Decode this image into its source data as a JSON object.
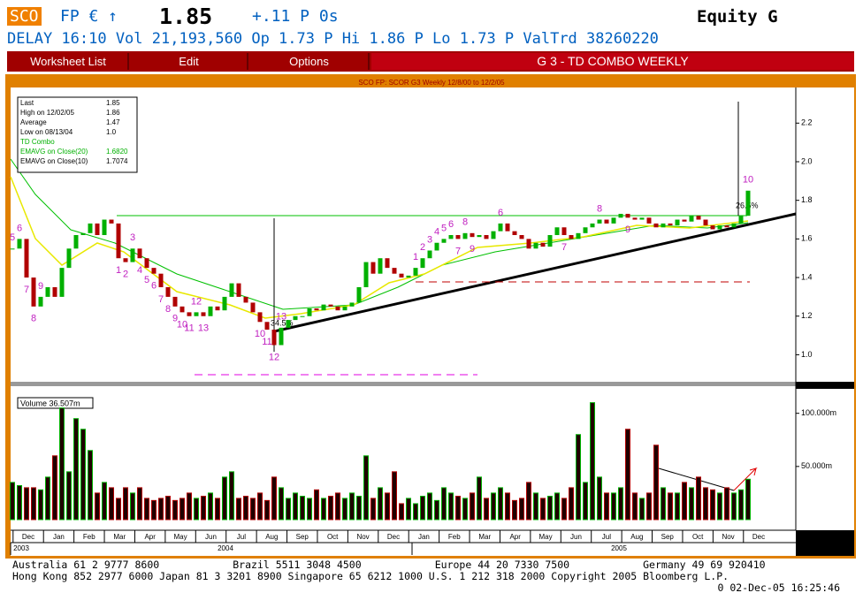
{
  "header": {
    "ticker": "SCO",
    "exchange": "FP € ↑",
    "price": "1.85",
    "change": "+.11 P 0s",
    "screen": "Equity G",
    "status": "DELAY 16:10 Vol 21,193,560 Op 1.73 P Hi 1.86 P Lo 1.73 P ValTrd 38260220"
  },
  "menu": [
    "Worksheet List",
    "Edit",
    "Options"
  ],
  "screen_title": "G 3 - TD COMBO WEEKLY",
  "chart_data": {
    "type": "candlestick",
    "title": "SCO FP: SCOR G3 Weekly 12/8/00 to 12/2/05",
    "legend": [
      {
        "label": "Last",
        "value": "1.85",
        "color": "#000000"
      },
      {
        "label": "High on  12/02/05",
        "value": "1.86",
        "color": "#000000"
      },
      {
        "label": "Average",
        "value": "1.47",
        "color": "#000000"
      },
      {
        "label": "Low on  08/13/04",
        "value": "1.0",
        "color": "#000000"
      },
      {
        "label": "TD Combo",
        "value": "",
        "color": "#00b000"
      },
      {
        "label": "EMAVG on Close(20)",
        "value": "1.6820",
        "color": "#00b000"
      },
      {
        "label": "EMAVG on Close(10)",
        "value": "1.7074",
        "color": "#000000"
      }
    ],
    "close": [
      1.55,
      1.6,
      1.4,
      1.25,
      1.3,
      1.35,
      1.3,
      1.45,
      1.55,
      1.62,
      1.63,
      1.68,
      1.62,
      1.7,
      1.68,
      1.5,
      1.48,
      1.55,
      1.5,
      1.45,
      1.42,
      1.35,
      1.3,
      1.25,
      1.22,
      1.2,
      1.22,
      1.2,
      1.25,
      1.23,
      1.3,
      1.37,
      1.3,
      1.27,
      1.22,
      1.17,
      1.13,
      1.05,
      1.14,
      1.18,
      1.2,
      1.2,
      1.24,
      1.23,
      1.26,
      1.25,
      1.23,
      1.25,
      1.27,
      1.35,
      1.48,
      1.42,
      1.5,
      1.45,
      1.42,
      1.4,
      1.41,
      1.45,
      1.5,
      1.54,
      1.58,
      1.6,
      1.62,
      1.6,
      1.63,
      1.61,
      1.62,
      1.6,
      1.64,
      1.68,
      1.64,
      1.62,
      1.6,
      1.55,
      1.58,
      1.56,
      1.62,
      1.66,
      1.62,
      1.6,
      1.63,
      1.66,
      1.68,
      1.7,
      1.68,
      1.71,
      1.73,
      1.71,
      1.7,
      1.71,
      1.68,
      1.66,
      1.68,
      1.67,
      1.7,
      1.69,
      1.72,
      1.7,
      1.67,
      1.65,
      1.67,
      1.66,
      1.68,
      1.72,
      1.85
    ],
    "td_labels": [
      "5",
      "6",
      "7",
      "8",
      "9",
      null,
      null,
      null,
      null,
      null,
      null,
      null,
      null,
      null,
      null,
      "1",
      "2",
      "3",
      "4",
      "5",
      "6",
      "7",
      "8",
      "9",
      "10",
      "11",
      "12",
      "13",
      null,
      null,
      null,
      null,
      null,
      null,
      null,
      "10",
      "11",
      "12",
      "13",
      null,
      null,
      null,
      null,
      null,
      null,
      null,
      null,
      null,
      null,
      null,
      null,
      null,
      null,
      null,
      null,
      null,
      null,
      "1",
      "2",
      "3",
      "4",
      "5",
      "6",
      "7",
      "8",
      "9",
      null,
      null,
      null,
      "6",
      null,
      null,
      null,
      null,
      null,
      null,
      null,
      null,
      "7",
      null,
      null,
      null,
      null,
      "8",
      null,
      null,
      null,
      "9",
      null,
      null,
      null,
      null,
      null,
      null,
      null,
      null,
      null,
      null,
      null,
      null,
      null,
      null,
      null,
      null,
      "10"
    ],
    "ylim": [
      0.86,
      2.38
    ],
    "yticks": [
      {
        "value": 1.0,
        "label": "1.0"
      },
      {
        "value": 1.2,
        "label": "1.2"
      },
      {
        "value": 1.4,
        "label": "1.4"
      },
      {
        "value": 1.6,
        "label": "1.6"
      },
      {
        "value": 1.8,
        "label": "1.8"
      },
      {
        "value": 2.0,
        "label": "2.0"
      },
      {
        "value": 2.2,
        "label": "2.2"
      }
    ],
    "annotations": [
      "34.5%",
      "26.5%"
    ],
    "months": [
      "Dec",
      "Jan",
      "Feb",
      "Mar",
      "Apr",
      "May",
      "Jun",
      "Jul",
      "Aug",
      "Sep",
      "Oct",
      "Nov",
      "Dec",
      "Jan",
      "Feb",
      "Mar",
      "Apr",
      "May",
      "Jun",
      "Jul",
      "Aug",
      "Sep",
      "Oct",
      "Nov",
      "Dec"
    ],
    "years": [
      "2003",
      "2004",
      "2005"
    ],
    "up_color": "#00b000",
    "down_color": "#b00000",
    "volume": {
      "label": "Volume   36.507m",
      "ylim": [
        0,
        123
      ],
      "yticks": [
        {
          "value": 100,
          "label": "100.000m"
        },
        {
          "value": 50,
          "label": "50.000m"
        }
      ],
      "values": [
        35,
        32,
        30,
        30,
        28,
        40,
        60,
        105,
        45,
        95,
        85,
        65,
        25,
        35,
        30,
        20,
        30,
        25,
        30,
        20,
        18,
        20,
        22,
        18,
        20,
        25,
        20,
        22,
        25,
        20,
        40,
        45,
        20,
        22,
        20,
        25,
        18,
        40,
        30,
        20,
        25,
        22,
        20,
        28,
        20,
        22,
        25,
        20,
        25,
        22,
        60,
        20,
        30,
        25,
        45,
        15,
        20,
        15,
        22,
        25,
        18,
        30,
        25,
        22,
        20,
        25,
        40,
        20,
        25,
        30,
        25,
        18,
        20,
        35,
        25,
        20,
        22,
        25,
        20,
        30,
        80,
        35,
        110,
        40,
        25,
        25,
        30,
        85,
        25,
        20,
        25,
        70,
        30,
        25,
        25,
        35,
        30,
        40,
        30,
        28,
        25,
        30,
        25,
        28,
        38
      ]
    }
  },
  "footer": [
    "Australia 61 2 9777 8600            Brazil 5511 3048 4500            Europe 44 20 7330 7500            Germany 49 69 920410",
    "Hong Kong 852 2977 6000 Japan 81 3 3201 8900 Singapore 65 6212 1000 U.S. 1 212 318 2000 Copyright 2005 Bloomberg L.P.",
    "0 02-Dec-05 16:25:46"
  ]
}
